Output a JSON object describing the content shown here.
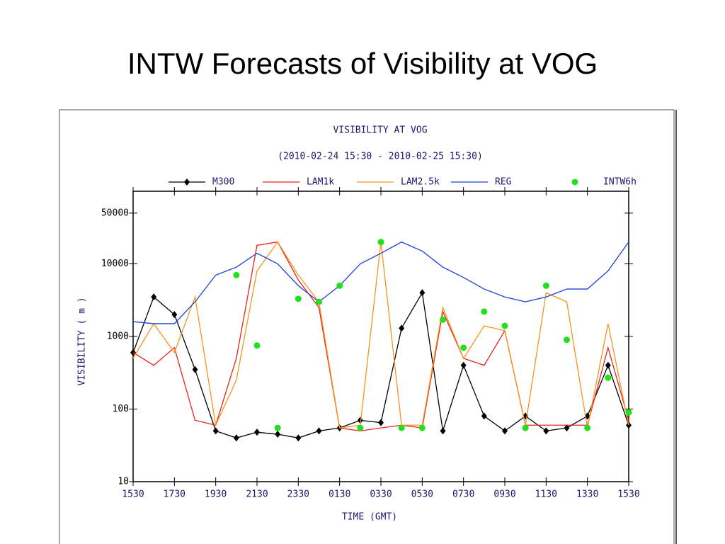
{
  "slide_title": "INTW  Forecasts of Visibility at VOG",
  "chart_data": {
    "type": "line",
    "title": "VISIBILITY AT VOG",
    "subtitle": "(2010-02-24 15:30 - 2010-02-25 15:30)",
    "x_label": "TIME (GMT)",
    "y_label": "VISIBILITY ( m )",
    "log_y": true,
    "xlim": [
      0,
      24
    ],
    "ylim": [
      10,
      100000
    ],
    "yticks": [
      10,
      100,
      1000,
      10000,
      50000
    ],
    "xticks": [
      {
        "value": 0,
        "label": "1530"
      },
      {
        "value": 2,
        "label": "1730"
      },
      {
        "value": 4,
        "label": "1930"
      },
      {
        "value": 6,
        "label": "2130"
      },
      {
        "value": 8,
        "label": "2330"
      },
      {
        "value": 10,
        "label": "0130"
      },
      {
        "value": 12,
        "label": "0330"
      },
      {
        "value": 14,
        "label": "0530"
      },
      {
        "value": 16,
        "label": "0730"
      },
      {
        "value": 18,
        "label": "0930"
      },
      {
        "value": 20,
        "label": "1130"
      },
      {
        "value": 22,
        "label": "1330"
      },
      {
        "value": 24,
        "label": "1530"
      }
    ],
    "x": [
      0,
      1,
      2,
      3,
      4,
      5,
      6,
      7,
      8,
      9,
      10,
      11,
      12,
      13,
      14,
      15,
      16,
      17,
      18,
      19,
      20,
      21,
      22,
      23,
      24
    ],
    "series": [
      {
        "name": "M300",
        "color": "#000000",
        "line": true,
        "marker": "diamond",
        "values": [
          600,
          3500,
          2000,
          350,
          50,
          40,
          48,
          45,
          40,
          50,
          55,
          70,
          65,
          1300,
          4000,
          50,
          400,
          80,
          50,
          80,
          50,
          55,
          80,
          400,
          60
        ]
      },
      {
        "name": "LAM1k",
        "color": "#e8231c",
        "line": true,
        "marker": null,
        "values": [
          600,
          400,
          700,
          70,
          60,
          500,
          18000,
          20000,
          6000,
          2500,
          55,
          50,
          55,
          60,
          55,
          2200,
          500,
          400,
          1200,
          60,
          60,
          60,
          60,
          700,
          70
        ]
      },
      {
        "name": "LAM2.5k",
        "color": "#f7941d",
        "line": true,
        "marker": null,
        "values": [
          500,
          1500,
          600,
          3500,
          60,
          250,
          8000,
          20000,
          7000,
          3000,
          55,
          60,
          20000,
          60,
          60,
          2500,
          500,
          1400,
          1200,
          60,
          4000,
          3000,
          55,
          1500,
          60
        ]
      },
      {
        "name": "REG",
        "color": "#1f3fd6",
        "line": true,
        "marker": null,
        "values": [
          1600,
          1500,
          1500,
          3000,
          7000,
          9000,
          14000,
          10000,
          5000,
          3000,
          5000,
          10000,
          14000,
          20000,
          15000,
          9000,
          6500,
          4500,
          3500,
          3000,
          3500,
          4500,
          4500,
          8000,
          20000
        ]
      },
      {
        "name": "INTW6h",
        "color": "#22e01f",
        "line": false,
        "marker": "circle",
        "values": [
          null,
          null,
          null,
          null,
          null,
          7000,
          750,
          55,
          3300,
          3000,
          5000,
          55,
          20000,
          55,
          55,
          1700,
          700,
          2200,
          1400,
          55,
          5000,
          900,
          55,
          270,
          90
        ]
      }
    ]
  }
}
